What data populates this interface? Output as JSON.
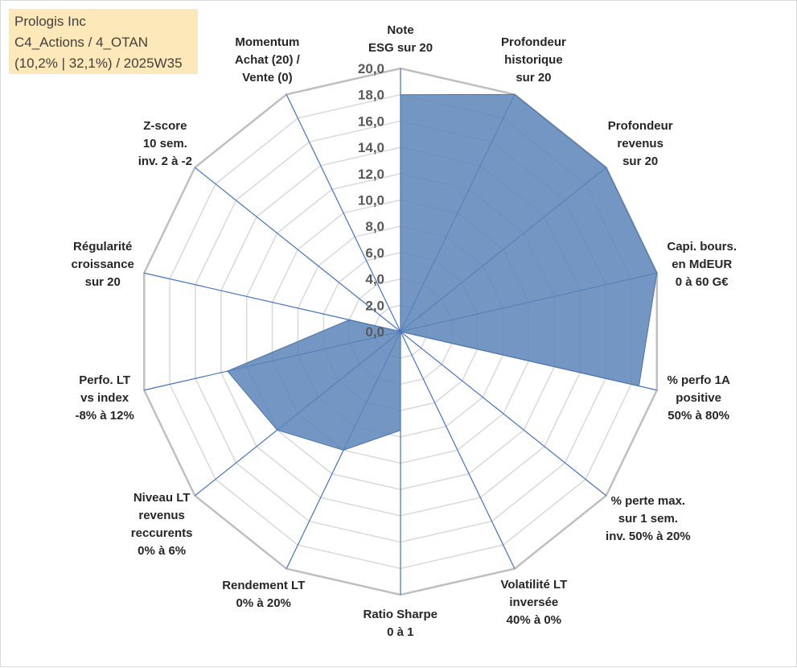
{
  "info_box": {
    "line1": "Prologis Inc",
    "line2": "C4_Actions / 4_OTAN",
    "line3": "(10,2% | 32,1%) / 2025W35"
  },
  "chart_data": {
    "type": "radar",
    "rlim": [
      0,
      20
    ],
    "tick_step": 2,
    "tick_labels": [
      "0,0",
      "2,0",
      "4,0",
      "6,0",
      "8,0",
      "10,0",
      "12,0",
      "14,0",
      "16,0",
      "18,0",
      "20,0"
    ],
    "grid": true,
    "fill_color": "#5b85b7",
    "grid_color": "#c0c0c0",
    "spoke_color": "#4472c4",
    "axes": [
      {
        "label": [
          "Note",
          "ESG sur 20"
        ],
        "value": 18.0
      },
      {
        "label": [
          "Profondeur",
          "historique",
          "sur 20"
        ],
        "value": 20.0
      },
      {
        "label": [
          "Profondeur",
          "revenus",
          "sur 20"
        ],
        "value": 20.0
      },
      {
        "label": [
          "Capi. bours.",
          "en MdEUR",
          "0 à 60 G€"
        ],
        "value": 20.0
      },
      {
        "label": [
          "% perfo 1A",
          "positive",
          "50% à 80%"
        ],
        "value": 18.6
      },
      {
        "label": [
          "% perte max.",
          "sur 1 sem.",
          "inv. 50% à 20%"
        ],
        "value": 0.0
      },
      {
        "label": [
          "Volatilité LT",
          "inversée",
          "40% à 0%"
        ],
        "value": 0.0
      },
      {
        "label": [
          "Ratio Sharpe",
          "0 à 1"
        ],
        "value": 7.5
      },
      {
        "label": [
          "Rendement LT",
          "0% à 20%"
        ],
        "value": 10.0
      },
      {
        "label": [
          "Niveau LT",
          "revenus",
          "reccurents",
          "0% à 6%"
        ],
        "value": 12.0
      },
      {
        "label": [
          "Perfo. LT",
          "vs index",
          "-8% à 12%"
        ],
        "value": 13.5
      },
      {
        "label": [
          "Régularité",
          "croissance",
          "sur 20"
        ],
        "value": 4.0
      },
      {
        "label": [
          "Z-score",
          "10 sem.",
          "inv. 2 à -2"
        ],
        "value": 0.0
      },
      {
        "label": [
          "Momentum",
          "Achat (20) /",
          "Vente (0)"
        ],
        "value": 0.0
      }
    ]
  }
}
